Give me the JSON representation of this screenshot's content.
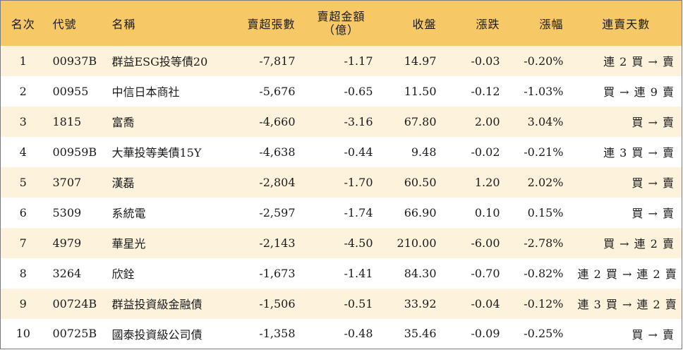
{
  "colors": {
    "header_bg": "#f7c966",
    "stripe_bg": "#fdf3dd",
    "up": "#e01010",
    "down": "#118a1f"
  },
  "headers": {
    "rank": "名次",
    "code": "代號",
    "name": "名稱",
    "net_sell_lots": "賣超張數",
    "net_sell_amount_line1": "賣超金額",
    "net_sell_amount_line2": "（億）",
    "close": "收盤",
    "change": "漲跌",
    "change_pct": "漲幅",
    "streak": "連賣天數"
  },
  "rows": [
    {
      "rank": "1",
      "code": "00937B",
      "name": "群益ESG投等債20",
      "lots": "-7,817",
      "amount": "-1.17",
      "close": "14.97",
      "change": "-0.03",
      "pct": "-0.20%",
      "dir": "neg",
      "streak": "連 2 買 → 賣"
    },
    {
      "rank": "2",
      "code": "00955",
      "name": "中信日本商社",
      "lots": "-5,676",
      "amount": "-0.65",
      "close": "11.50",
      "change": "-0.12",
      "pct": "-1.03%",
      "dir": "neg",
      "streak": "買 → 連 9 賣"
    },
    {
      "rank": "3",
      "code": "1815",
      "name": "富喬",
      "lots": "-4,660",
      "amount": "-3.16",
      "close": "67.80",
      "change": "2.00",
      "pct": "3.04%",
      "dir": "pos",
      "streak": "買 → 賣"
    },
    {
      "rank": "4",
      "code": "00959B",
      "name": "大華投等美債15Y",
      "lots": "-4,638",
      "amount": "-0.44",
      "close": "9.48",
      "change": "-0.02",
      "pct": "-0.21%",
      "dir": "neg",
      "streak": "連 3 買 → 賣"
    },
    {
      "rank": "5",
      "code": "3707",
      "name": "漢磊",
      "lots": "-2,804",
      "amount": "-1.70",
      "close": "60.50",
      "change": "1.20",
      "pct": "2.02%",
      "dir": "pos",
      "streak": "買 → 賣"
    },
    {
      "rank": "6",
      "code": "5309",
      "name": "系統電",
      "lots": "-2,597",
      "amount": "-1.74",
      "close": "66.90",
      "change": "0.10",
      "pct": "0.15%",
      "dir": "pos",
      "streak": "買 → 賣"
    },
    {
      "rank": "7",
      "code": "4979",
      "name": "華星光",
      "lots": "-2,143",
      "amount": "-4.50",
      "close": "210.00",
      "change": "-6.00",
      "pct": "-2.78%",
      "dir": "neg",
      "streak": "買 → 連 2 賣"
    },
    {
      "rank": "8",
      "code": "3264",
      "name": "欣銓",
      "lots": "-1,673",
      "amount": "-1.41",
      "close": "84.30",
      "change": "-0.70",
      "pct": "-0.82%",
      "dir": "neg",
      "streak": "連 2 買 → 連 2 賣"
    },
    {
      "rank": "9",
      "code": "00724B",
      "name": "群益投資級金融債",
      "lots": "-1,506",
      "amount": "-0.51",
      "close": "33.92",
      "change": "-0.04",
      "pct": "-0.12%",
      "dir": "neg",
      "streak": "連 3 買 → 連 2 賣"
    },
    {
      "rank": "10",
      "code": "00725B",
      "name": "國泰投資級公司債",
      "lots": "-1,358",
      "amount": "-0.48",
      "close": "35.46",
      "change": "-0.09",
      "pct": "-0.25%",
      "dir": "neg",
      "streak": "買 → 賣"
    }
  ]
}
